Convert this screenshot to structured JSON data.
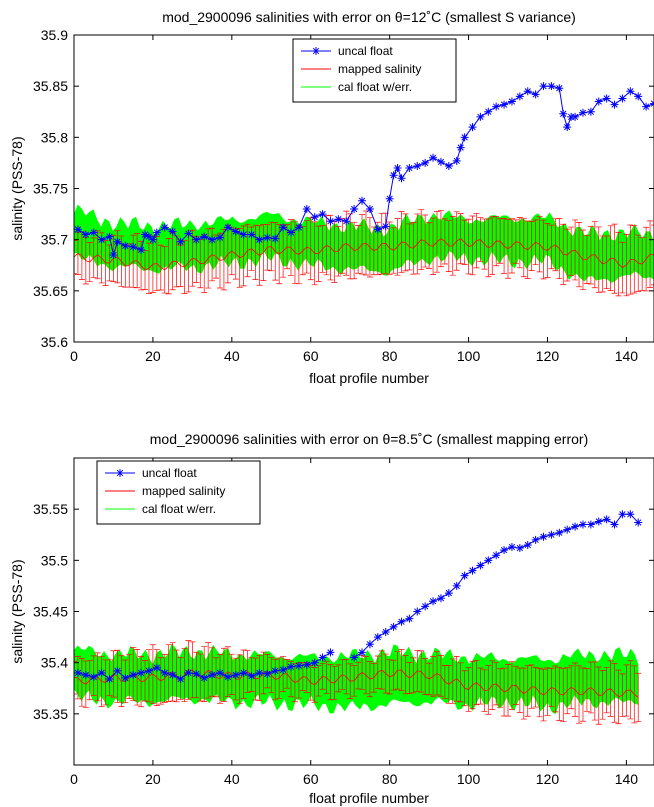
{
  "chart_data": [
    {
      "type": "line",
      "title": "mod_2900096 salinities with error on θ=12˚C (smallest S variance)",
      "xlabel": "float profile number",
      "ylabel": "salinity (PSS-78)",
      "xlim": [
        0,
        147
      ],
      "ylim": [
        35.6,
        35.9
      ],
      "xticks": [
        "0",
        "20",
        "40",
        "60",
        "80",
        "100",
        "120",
        "140"
      ],
      "yticks": [
        "35.6",
        "35.65",
        "35.7",
        "35.75",
        "35.8",
        "35.85",
        "35.9"
      ],
      "legend_position": "top-center",
      "grid": false,
      "series": [
        {
          "name": "uncal float",
          "color": "#0000ff",
          "marker": "asterisk",
          "x": [
            1,
            3,
            5,
            7,
            9,
            10,
            11,
            13,
            15,
            17,
            18,
            19,
            20,
            21,
            23,
            25,
            27,
            29,
            31,
            33,
            35,
            37,
            39,
            41,
            43,
            45,
            47,
            49,
            51,
            53,
            55,
            57,
            59,
            61,
            63,
            65,
            67,
            69,
            71,
            73,
            75,
            77,
            79,
            80,
            81,
            82,
            83,
            85,
            87,
            89,
            91,
            93,
            95,
            97,
            98,
            99,
            101,
            103,
            105,
            107,
            109,
            111,
            113,
            115,
            117,
            119,
            121,
            123,
            124,
            125,
            126,
            127,
            129,
            131,
            133,
            135,
            137,
            139,
            141,
            143,
            145,
            147
          ],
          "y": [
            35.71,
            35.705,
            35.707,
            35.7,
            35.703,
            35.685,
            35.698,
            35.694,
            35.693,
            35.69,
            35.705,
            35.703,
            35.7,
            35.707,
            35.712,
            35.708,
            35.698,
            35.706,
            35.7,
            35.703,
            35.7,
            35.702,
            35.712,
            35.708,
            35.705,
            35.705,
            35.7,
            35.702,
            35.701,
            35.712,
            35.707,
            35.712,
            35.73,
            35.722,
            35.725,
            35.718,
            35.72,
            35.718,
            35.73,
            35.738,
            35.73,
            35.71,
            35.713,
            35.74,
            35.763,
            35.77,
            35.76,
            35.77,
            35.772,
            35.775,
            35.78,
            35.776,
            35.772,
            35.777,
            35.79,
            35.8,
            35.81,
            35.82,
            35.825,
            35.83,
            35.832,
            35.835,
            35.84,
            35.845,
            35.842,
            35.85,
            35.85,
            35.848,
            35.823,
            35.81,
            35.82,
            35.82,
            35.824,
            35.825,
            35.835,
            35.838,
            35.832,
            35.838,
            35.845,
            35.84,
            35.83,
            35.833
          ]
        },
        {
          "name": "mapped salinity",
          "color": "#ff0000",
          "x": [
            0,
            10,
            20,
            30,
            40,
            50,
            60,
            70,
            80,
            90,
            100,
            110,
            120,
            130,
            140,
            147
          ],
          "y": [
            35.683,
            35.68,
            35.673,
            35.678,
            35.685,
            35.69,
            35.689,
            35.693,
            35.693,
            35.697,
            35.697,
            35.695,
            35.693,
            35.683,
            35.676,
            35.683
          ],
          "error": [
            0.02,
            0.022,
            0.024,
            0.025,
            0.026,
            0.025,
            0.027,
            0.028,
            0.026,
            0.026,
            0.025,
            0.025,
            0.025,
            0.028,
            0.03,
            0.028
          ]
        },
        {
          "name": "cal float w/err.",
          "color": "#00ff00",
          "x": [
            0,
            10,
            20,
            30,
            40,
            50,
            60,
            70,
            80,
            90,
            100,
            110,
            120,
            130,
            140,
            147
          ],
          "y": [
            35.706,
            35.695,
            35.692,
            35.694,
            35.698,
            35.703,
            35.696,
            35.692,
            35.69,
            35.703,
            35.701,
            35.7,
            35.7,
            35.682,
            35.686,
            35.683
          ],
          "error": [
            0.022,
            0.02,
            0.02,
            0.02,
            0.02,
            0.02,
            0.02,
            0.02,
            0.02,
            0.02,
            0.018,
            0.02,
            0.02,
            0.022,
            0.02,
            0.02
          ]
        }
      ]
    },
    {
      "type": "line",
      "title": "mod_2900096 salinities with error on θ=8.5˚C (smallest mapping error)",
      "xlabel": "float profile number",
      "ylabel": "salinity (PSS-78)",
      "xlim": [
        0,
        147
      ],
      "ylim": [
        35.3,
        35.6
      ],
      "xticks": [
        "0",
        "20",
        "40",
        "60",
        "80",
        "100",
        "120",
        "140"
      ],
      "yticks": [
        "35.35",
        "35.4",
        "35.45",
        "35.5",
        "35.55"
      ],
      "legend_position": "top-left",
      "grid": false,
      "series": [
        {
          "name": "uncal float",
          "color": "#0000ff",
          "marker": "asterisk",
          "x": [
            1,
            3,
            5,
            7,
            9,
            11,
            13,
            15,
            17,
            19,
            21,
            23,
            25,
            27,
            29,
            31,
            33,
            35,
            37,
            39,
            41,
            43,
            45,
            47,
            49,
            51,
            53,
            55,
            57,
            59,
            61,
            63,
            65,
            71,
            73,
            75,
            77,
            79,
            81,
            83,
            85,
            87,
            89,
            91,
            93,
            95,
            97,
            99,
            101,
            103,
            105,
            107,
            109,
            111,
            113,
            115,
            117,
            119,
            121,
            123,
            125,
            127,
            129,
            131,
            133,
            135,
            137,
            139,
            141,
            143
          ],
          "y": [
            35.39,
            35.388,
            35.386,
            35.39,
            35.384,
            35.392,
            35.385,
            35.388,
            35.39,
            35.392,
            35.395,
            35.39,
            35.388,
            35.384,
            35.39,
            35.389,
            35.385,
            35.388,
            35.39,
            35.386,
            35.388,
            35.39,
            35.387,
            35.39,
            35.389,
            35.392,
            35.393,
            35.396,
            35.397,
            35.398,
            35.4,
            35.405,
            35.41,
            35.405,
            35.41,
            35.418,
            35.425,
            35.43,
            35.435,
            35.44,
            35.443,
            35.45,
            35.455,
            35.46,
            35.463,
            35.468,
            35.475,
            35.485,
            35.49,
            35.495,
            35.5,
            35.505,
            35.51,
            35.513,
            35.512,
            35.515,
            35.52,
            35.523,
            35.525,
            35.527,
            35.53,
            35.533,
            35.535,
            35.535,
            35.538,
            35.54,
            35.535,
            35.545,
            35.545,
            35.537
          ]
        },
        {
          "name": "mapped salinity",
          "color": "#ff0000",
          "x": [
            0,
            10,
            20,
            30,
            40,
            50,
            60,
            70,
            80,
            90,
            100,
            110,
            120,
            130,
            140,
            143
          ],
          "y": [
            35.382,
            35.385,
            35.385,
            35.39,
            35.387,
            35.388,
            35.382,
            35.385,
            35.39,
            35.388,
            35.377,
            35.375,
            35.372,
            35.372,
            35.37,
            35.37
          ],
          "error": [
            0.02,
            0.022,
            0.025,
            0.025,
            0.022,
            0.018,
            0.015,
            0.015,
            0.017,
            0.018,
            0.02,
            0.022,
            0.022,
            0.025,
            0.025,
            0.025
          ]
        },
        {
          "name": "cal float w/err.",
          "color": "#00ff00",
          "x": [
            0,
            10,
            20,
            30,
            40,
            50,
            60,
            70,
            80,
            90,
            100,
            110,
            120,
            130,
            140,
            143
          ],
          "y": [
            35.39,
            35.385,
            35.385,
            35.388,
            35.385,
            35.384,
            35.382,
            35.381,
            35.385,
            35.385,
            35.382,
            35.383,
            35.38,
            35.385,
            35.384,
            35.385
          ],
          "error": [
            0.022,
            0.022,
            0.022,
            0.022,
            0.022,
            0.022,
            0.022,
            0.024,
            0.024,
            0.022,
            0.022,
            0.02,
            0.022,
            0.022,
            0.022,
            0.022
          ]
        }
      ]
    }
  ]
}
